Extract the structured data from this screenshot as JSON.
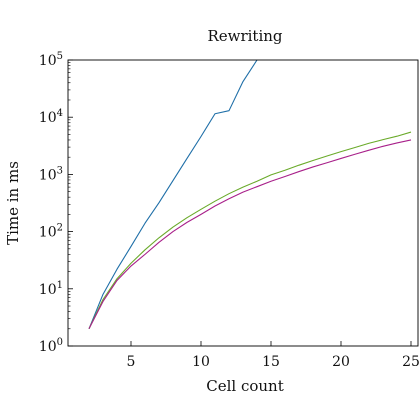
{
  "chart_data": {
    "type": "line",
    "title": "Rewriting",
    "xlabel": "Cell count",
    "ylabel": "Time in ms",
    "xlim": [
      0.5,
      25.5
    ],
    "ylim": [
      1,
      100000
    ],
    "yscale": "log",
    "grid": false,
    "x_ticks": [
      5,
      10,
      15,
      20,
      25
    ],
    "y_ticks": [
      {
        "value": 1,
        "base": "10",
        "exp": "0"
      },
      {
        "value": 10,
        "base": "10",
        "exp": "1"
      },
      {
        "value": 100,
        "base": "10",
        "exp": "2"
      },
      {
        "value": 1000,
        "base": "10",
        "exp": "3"
      },
      {
        "value": 10000,
        "base": "10",
        "exp": "4"
      },
      {
        "value": 100000,
        "base": "10",
        "exp": "5"
      }
    ],
    "series": [
      {
        "color": "#1f6fa8",
        "x": [
          2,
          3,
          4,
          5,
          6,
          7,
          8,
          9,
          10,
          11,
          12,
          13,
          14,
          15
        ],
        "y": [
          2,
          8,
          22,
          55,
          140,
          320,
          780,
          1900,
          4600,
          11500,
          13000,
          42000,
          100000,
          250000
        ]
      },
      {
        "color": "#6aaa2a",
        "x": [
          2,
          3,
          4,
          5,
          6,
          7,
          8,
          9,
          10,
          11,
          12,
          13,
          14,
          15,
          16,
          17,
          18,
          19,
          20,
          21,
          22,
          23,
          24,
          25
        ],
        "y": [
          2,
          6.5,
          15,
          28,
          48,
          78,
          120,
          175,
          245,
          340,
          460,
          600,
          760,
          980,
          1180,
          1450,
          1750,
          2100,
          2500,
          2950,
          3500,
          4050,
          4650,
          5500
        ]
      },
      {
        "color": "#a8208a",
        "x": [
          2,
          3,
          4,
          5,
          6,
          7,
          8,
          9,
          10,
          11,
          12,
          13,
          14,
          15,
          16,
          17,
          18,
          19,
          20,
          21,
          22,
          23,
          24,
          25
        ],
        "y": [
          2,
          6,
          14,
          25,
          40,
          65,
          100,
          145,
          200,
          280,
          375,
          490,
          610,
          760,
          920,
          1120,
          1350,
          1600,
          1900,
          2250,
          2650,
          3100,
          3550,
          4000
        ]
      }
    ]
  }
}
